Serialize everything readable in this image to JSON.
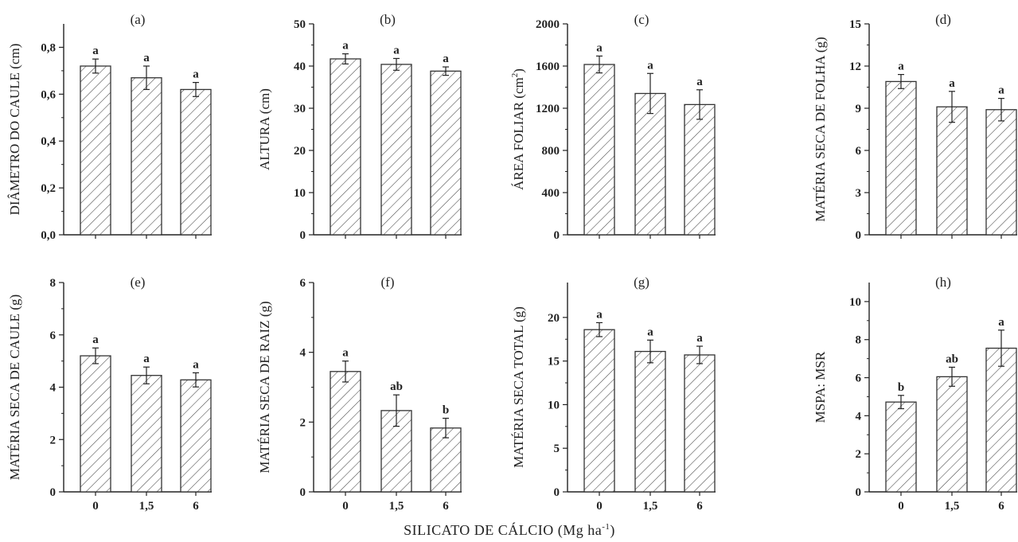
{
  "figure": {
    "xlabel": "SILICATO DE CÁLCIO (Mg ha",
    "xlabel_sup": "-1",
    "xlabel_end": ")"
  },
  "chart_data": [
    {
      "type": "bar",
      "panel": "(a)",
      "ylabel": "DIÂMETRO DO CAULE (cm)",
      "categories": [
        "0",
        "1,5",
        "6"
      ],
      "values": [
        0.72,
        0.67,
        0.62
      ],
      "errors": [
        0.03,
        0.05,
        0.03
      ],
      "significance": [
        "a",
        "a",
        "a"
      ],
      "ylim": [
        0,
        0.9
      ],
      "yticks": [
        0,
        0.2,
        0.4,
        0.6,
        0.8
      ],
      "ytick_labels": [
        "0,0",
        "0,2",
        "0,4",
        "0,6",
        "0,8"
      ]
    },
    {
      "type": "bar",
      "panel": "(b)",
      "ylabel": "ALTURA (cm)",
      "categories": [
        "0",
        "1,5",
        "6"
      ],
      "values": [
        41.7,
        40.4,
        38.8
      ],
      "errors": [
        1.2,
        1.4,
        1.0
      ],
      "significance": [
        "a",
        "a",
        "a"
      ],
      "ylim": [
        0,
        50
      ],
      "yticks": [
        0,
        10,
        20,
        30,
        40,
        50
      ],
      "ytick_labels": [
        "0",
        "10",
        "20",
        "30",
        "40",
        "50"
      ]
    },
    {
      "type": "bar",
      "panel": "(c)",
      "ylabel": "ÁREA FOLIAR (cm",
      "ylabel_sup": "2",
      "ylabel_end": ")",
      "categories": [
        "0",
        "1,5",
        "6"
      ],
      "values": [
        1615,
        1340,
        1235
      ],
      "errors": [
        80,
        190,
        140
      ],
      "significance": [
        "a",
        "a",
        "a"
      ],
      "ylim": [
        0,
        2000
      ],
      "yticks": [
        0,
        400,
        800,
        1200,
        1600,
        2000
      ],
      "ytick_labels": [
        "0",
        "400",
        "800",
        "1200",
        "1600",
        "2000"
      ]
    },
    {
      "type": "bar",
      "panel": "(d)",
      "ylabel": "MATÉRIA SECA DE FOLHA (g)",
      "categories": [
        "0",
        "1,5",
        "6"
      ],
      "values": [
        10.9,
        9.1,
        8.9
      ],
      "errors": [
        0.5,
        1.1,
        0.8
      ],
      "significance": [
        "a",
        "a",
        "a"
      ],
      "ylim": [
        0,
        15
      ],
      "yticks": [
        0,
        3,
        6,
        9,
        12,
        15
      ],
      "ytick_labels": [
        "0",
        "3",
        "6",
        "9",
        "12",
        "15"
      ]
    },
    {
      "type": "bar",
      "panel": "(e)",
      "ylabel": "MATÉRIA SECA DE CAULE (g)",
      "categories": [
        "0",
        "1,5",
        "6"
      ],
      "values": [
        5.2,
        4.45,
        4.28
      ],
      "errors": [
        0.3,
        0.32,
        0.27
      ],
      "significance": [
        "a",
        "a",
        "a"
      ],
      "ylim": [
        0,
        8
      ],
      "yticks": [
        0,
        2,
        4,
        6,
        8
      ],
      "ytick_labels": [
        "0",
        "2",
        "4",
        "6",
        "8"
      ]
    },
    {
      "type": "bar",
      "panel": "(f)",
      "ylabel": "MATÉRIA SECA DE RAIZ (g)",
      "categories": [
        "0",
        "1,5",
        "6"
      ],
      "values": [
        3.45,
        2.33,
        1.83
      ],
      "errors": [
        0.3,
        0.45,
        0.28
      ],
      "significance": [
        "a",
        "ab",
        "b"
      ],
      "ylim": [
        0,
        6
      ],
      "yticks": [
        0,
        2,
        4,
        6
      ],
      "ytick_labels": [
        "0",
        "2",
        "4",
        "6"
      ]
    },
    {
      "type": "bar",
      "panel": "(g)",
      "ylabel": "MATÉRIA SECA TOTAL (g)",
      "categories": [
        "0",
        "1,5",
        "6"
      ],
      "values": [
        18.6,
        16.1,
        15.7
      ],
      "errors": [
        0.8,
        1.3,
        1.0
      ],
      "significance": [
        "a",
        "a",
        "a"
      ],
      "ylim": [
        0,
        24
      ],
      "yticks": [
        0,
        5,
        10,
        15,
        20
      ],
      "ytick_labels": [
        "0",
        "5",
        "10",
        "15",
        "20"
      ]
    },
    {
      "type": "bar",
      "panel": "(h)",
      "ylabel": "MSPA: MSR",
      "categories": [
        "0",
        "1,5",
        "6"
      ],
      "values": [
        4.72,
        6.05,
        7.55
      ],
      "errors": [
        0.35,
        0.5,
        0.95
      ],
      "significance": [
        "b",
        "ab",
        "a"
      ],
      "ylim": [
        0,
        11
      ],
      "yticks": [
        0,
        2,
        4,
        6,
        8,
        10
      ],
      "ytick_labels": [
        "0",
        "2",
        "4",
        "6",
        "8",
        "10"
      ]
    }
  ],
  "style": {
    "bar_fill": "#ffffff",
    "bar_stroke": "#333333",
    "hatch_color": "#444444",
    "axis_color": "#222222"
  }
}
